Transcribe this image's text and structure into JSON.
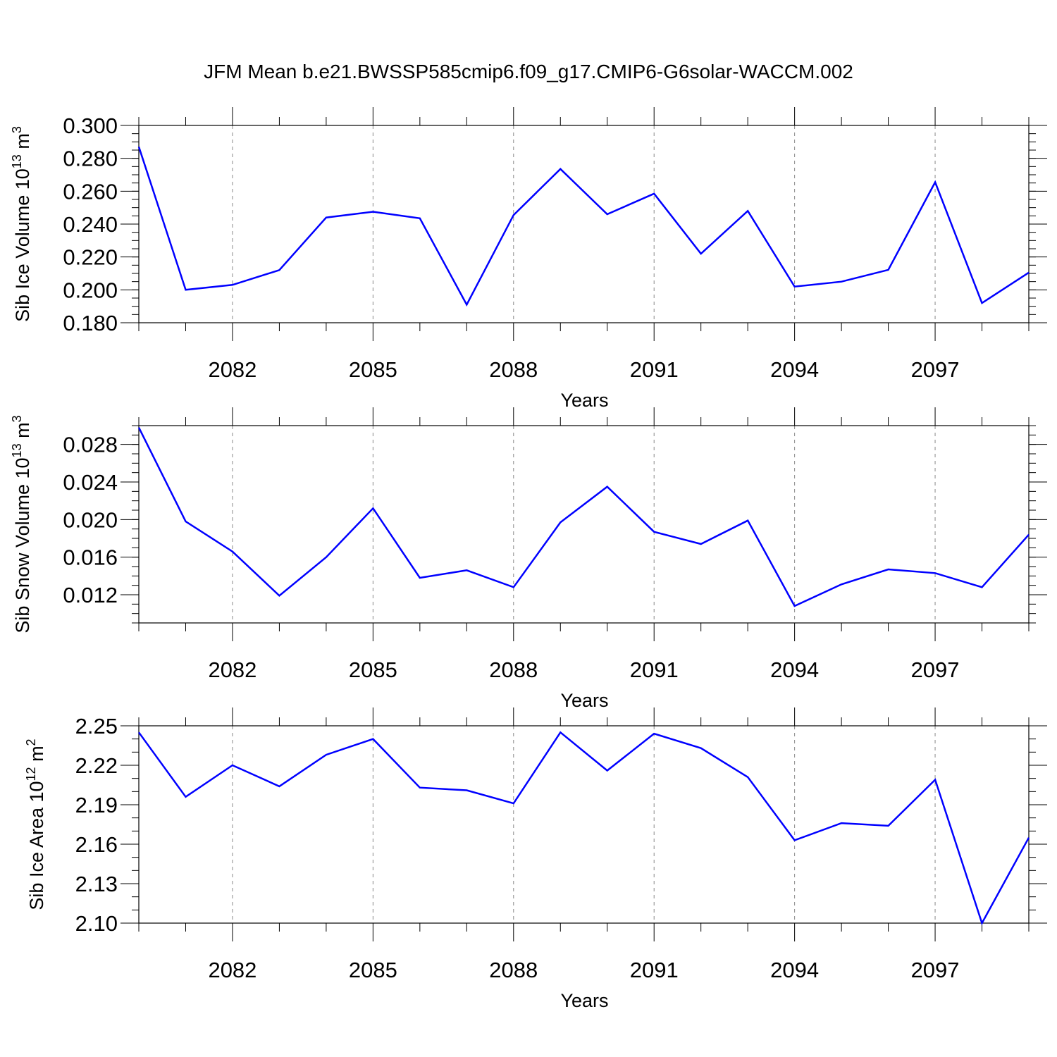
{
  "figure": {
    "title": "JFM Mean b.e21.BWSSP585cmip6.f09_g17.CMIP6-G6solar-WACCM.002",
    "line_color": "#0000ff",
    "grid_color": "#888888"
  },
  "chart_data": [
    {
      "type": "line",
      "ylabel_main": "Sib Ice Volume 10",
      "ylabel_exp": "13",
      "ylabel_unit": "m",
      "ylabel_unit_exp": "3",
      "xlabel": "Years",
      "ylim": [
        0.18,
        0.3
      ],
      "yticks": [
        0.18,
        0.2,
        0.22,
        0.24,
        0.26,
        0.28,
        0.3
      ],
      "ytick_labels": [
        "0.180",
        "0.200",
        "0.220",
        "0.240",
        "0.260",
        "0.280",
        "0.300"
      ],
      "yminor_step": 0.005,
      "xlim": [
        2080,
        2099
      ],
      "xticks": [
        2082,
        2085,
        2088,
        2091,
        2094,
        2097
      ],
      "xtick_labels": [
        "2082",
        "2085",
        "2088",
        "2091",
        "2094",
        "2097"
      ],
      "grid": "vertical dashed at major x ticks",
      "series": [
        {
          "x": [
            2080,
            2081,
            2082,
            2083,
            2084,
            2085,
            2086,
            2087,
            2088,
            2089,
            2090,
            2091,
            2092,
            2093,
            2094,
            2095,
            2096,
            2097,
            2098,
            2099
          ],
          "values": [
            0.287,
            0.2,
            0.203,
            0.212,
            0.244,
            0.2475,
            0.2435,
            0.191,
            0.2455,
            0.2735,
            0.246,
            0.2585,
            0.222,
            0.248,
            0.202,
            0.205,
            0.2122,
            0.2655,
            0.192,
            0.2105
          ]
        }
      ]
    },
    {
      "type": "line",
      "ylabel_main": "Sib Snow Volume 10",
      "ylabel_exp": "13",
      "ylabel_unit": "m",
      "ylabel_unit_exp": "3",
      "xlabel": "Years",
      "ylim": [
        0.009,
        0.03
      ],
      "yticks": [
        0.012,
        0.016,
        0.02,
        0.024,
        0.028
      ],
      "ytick_labels": [
        "0.012",
        "0.016",
        "0.020",
        "0.024",
        "0.028"
      ],
      "yminor_step": 0.001,
      "xlim": [
        2080,
        2099
      ],
      "xticks": [
        2082,
        2085,
        2088,
        2091,
        2094,
        2097
      ],
      "xtick_labels": [
        "2082",
        "2085",
        "2088",
        "2091",
        "2094",
        "2097"
      ],
      "grid": "vertical dashed at major x ticks",
      "series": [
        {
          "x": [
            2080,
            2081,
            2082,
            2083,
            2084,
            2085,
            2086,
            2087,
            2088,
            2089,
            2090,
            2091,
            2092,
            2093,
            2094,
            2095,
            2096,
            2097,
            2098,
            2099
          ],
          "values": [
            0.0298,
            0.0198,
            0.0166,
            0.0119,
            0.016,
            0.0212,
            0.0138,
            0.0146,
            0.0128,
            0.0197,
            0.0235,
            0.0187,
            0.0174,
            0.0199,
            0.0108,
            0.0131,
            0.0147,
            0.0143,
            0.0128,
            0.0184
          ]
        }
      ]
    },
    {
      "type": "line",
      "ylabel_main": "Sib Ice Area 10",
      "ylabel_exp": "12",
      "ylabel_unit": "m",
      "ylabel_unit_exp": "2",
      "xlabel": "Years",
      "ylim": [
        2.1,
        2.25
      ],
      "yticks": [
        2.1,
        2.13,
        2.16,
        2.19,
        2.22,
        2.25
      ],
      "ytick_labels": [
        "2.10",
        "2.13",
        "2.16",
        "2.19",
        "2.22",
        "2.25"
      ],
      "yminor_step": 0.01,
      "xlim": [
        2080,
        2099
      ],
      "xticks": [
        2082,
        2085,
        2088,
        2091,
        2094,
        2097
      ],
      "xtick_labels": [
        "2082",
        "2085",
        "2088",
        "2091",
        "2094",
        "2097"
      ],
      "grid": "vertical dashed at major x ticks",
      "series": [
        {
          "x": [
            2080,
            2081,
            2082,
            2083,
            2084,
            2085,
            2086,
            2087,
            2088,
            2089,
            2090,
            2091,
            2092,
            2093,
            2094,
            2095,
            2096,
            2097,
            2098,
            2099
          ],
          "values": [
            2.245,
            2.196,
            2.22,
            2.204,
            2.228,
            2.24,
            2.203,
            2.201,
            2.191,
            2.245,
            2.216,
            2.244,
            2.233,
            2.211,
            2.163,
            2.176,
            2.174,
            2.209,
            2.1,
            2.165
          ]
        }
      ]
    }
  ]
}
